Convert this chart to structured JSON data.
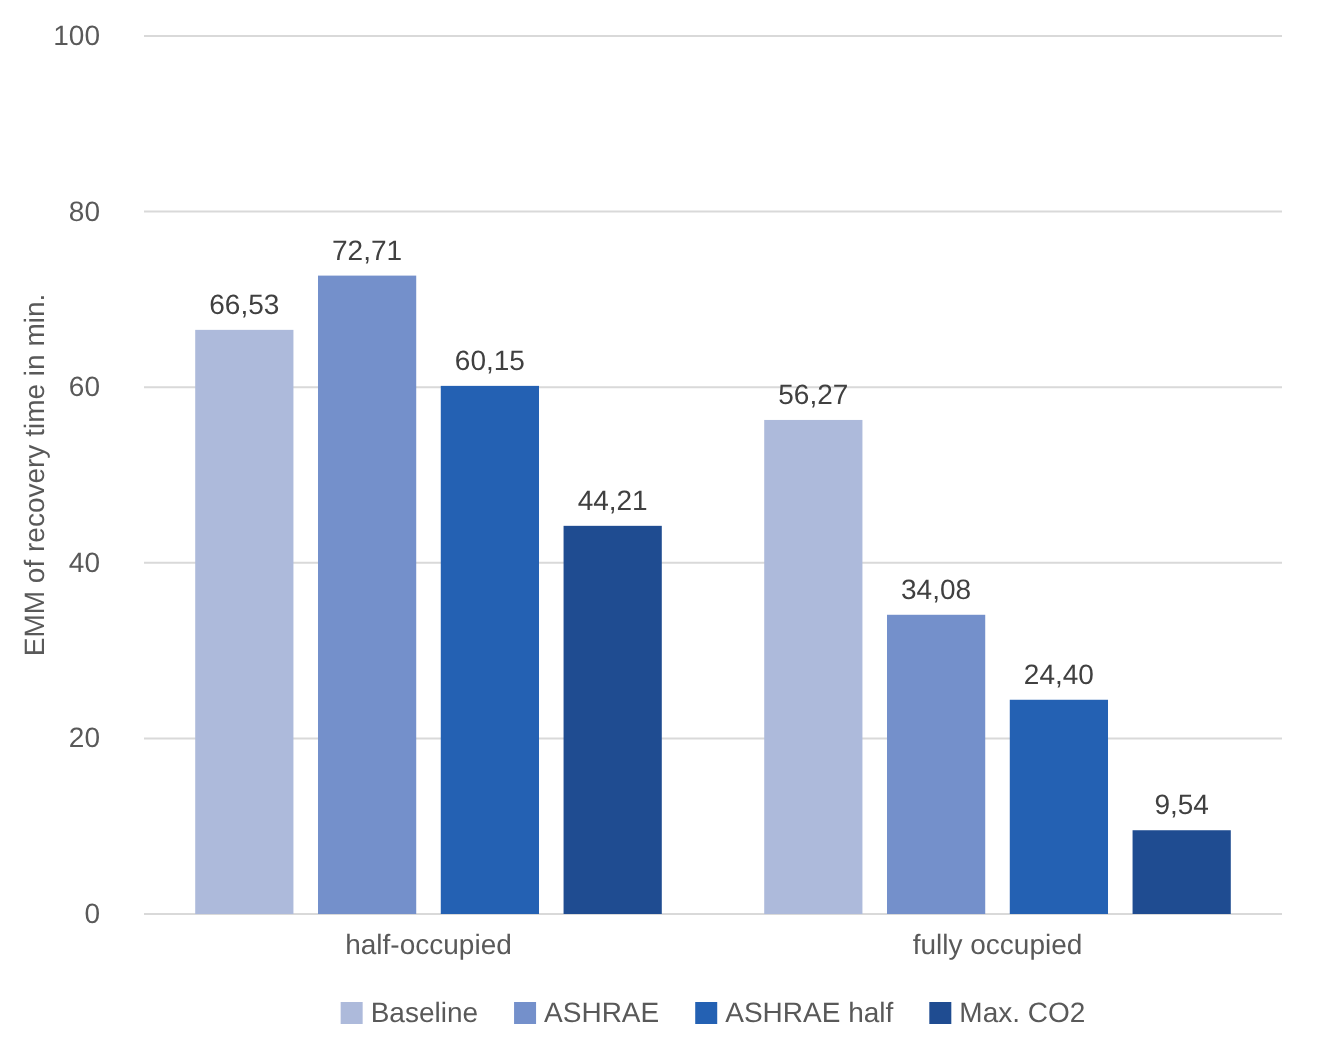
{
  "chart_data": {
    "type": "bar",
    "ylabel": "EMM of recovery time in min.",
    "categories": [
      "half-occupied",
      "fully occupied"
    ],
    "series": [
      {
        "name": "Baseline",
        "color": "#adbadb",
        "values": [
          66.53,
          56.27
        ],
        "value_labels": [
          "66,53",
          "56,27"
        ]
      },
      {
        "name": "ASHRAE",
        "color": "#7490cb",
        "values": [
          72.71,
          34.08
        ],
        "value_labels": [
          "72,71",
          "34,08"
        ]
      },
      {
        "name": "ASHRAE half",
        "color": "#2461b3",
        "values": [
          60.15,
          24.4
        ],
        "value_labels": [
          "60,15",
          "24,40"
        ]
      },
      {
        "name": "Max. CO2",
        "color": "#1f4c91",
        "values": [
          44.21,
          9.54
        ],
        "value_labels": [
          "44,21",
          "9,54"
        ]
      }
    ],
    "ylim": [
      0,
      100
    ],
    "yticks": [
      0,
      20,
      40,
      60,
      80,
      100
    ],
    "grid": "y",
    "legend": "bottom"
  }
}
